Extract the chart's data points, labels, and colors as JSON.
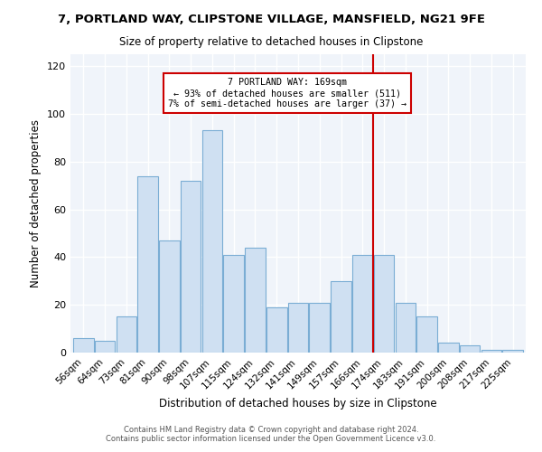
{
  "title": "7, PORTLAND WAY, CLIPSTONE VILLAGE, MANSFIELD, NG21 9FE",
  "subtitle": "Size of property relative to detached houses in Clipstone",
  "xlabel": "Distribution of detached houses by size in Clipstone",
  "ylabel": "Number of detached properties",
  "bar_labels": [
    "56sqm",
    "64sqm",
    "73sqm",
    "81sqm",
    "90sqm",
    "98sqm",
    "107sqm",
    "115sqm",
    "124sqm",
    "132sqm",
    "141sqm",
    "149sqm",
    "157sqm",
    "166sqm",
    "174sqm",
    "183sqm",
    "191sqm",
    "200sqm",
    "208sqm",
    "217sqm",
    "225sqm"
  ],
  "bar_heights": [
    6,
    5,
    15,
    74,
    47,
    72,
    93,
    41,
    44,
    19,
    21,
    21,
    30,
    41,
    41,
    21,
    15,
    4,
    3,
    1,
    1
  ],
  "bar_color": "#cfe0f2",
  "bar_edgecolor": "#7aadd4",
  "vline_x_index": 13.5,
  "vline_color": "#cc0000",
  "annotation_title": "7 PORTLAND WAY: 169sqm",
  "annotation_line1": "← 93% of detached houses are smaller (511)",
  "annotation_line2": "7% of semi-detached houses are larger (37) →",
  "annotation_box_edgecolor": "#cc0000",
  "ylim": [
    0,
    125
  ],
  "yticks": [
    0,
    20,
    40,
    60,
    80,
    100,
    120
  ],
  "footer1": "Contains HM Land Registry data © Crown copyright and database right 2024.",
  "footer2": "Contains public sector information licensed under the Open Government Licence v3.0."
}
